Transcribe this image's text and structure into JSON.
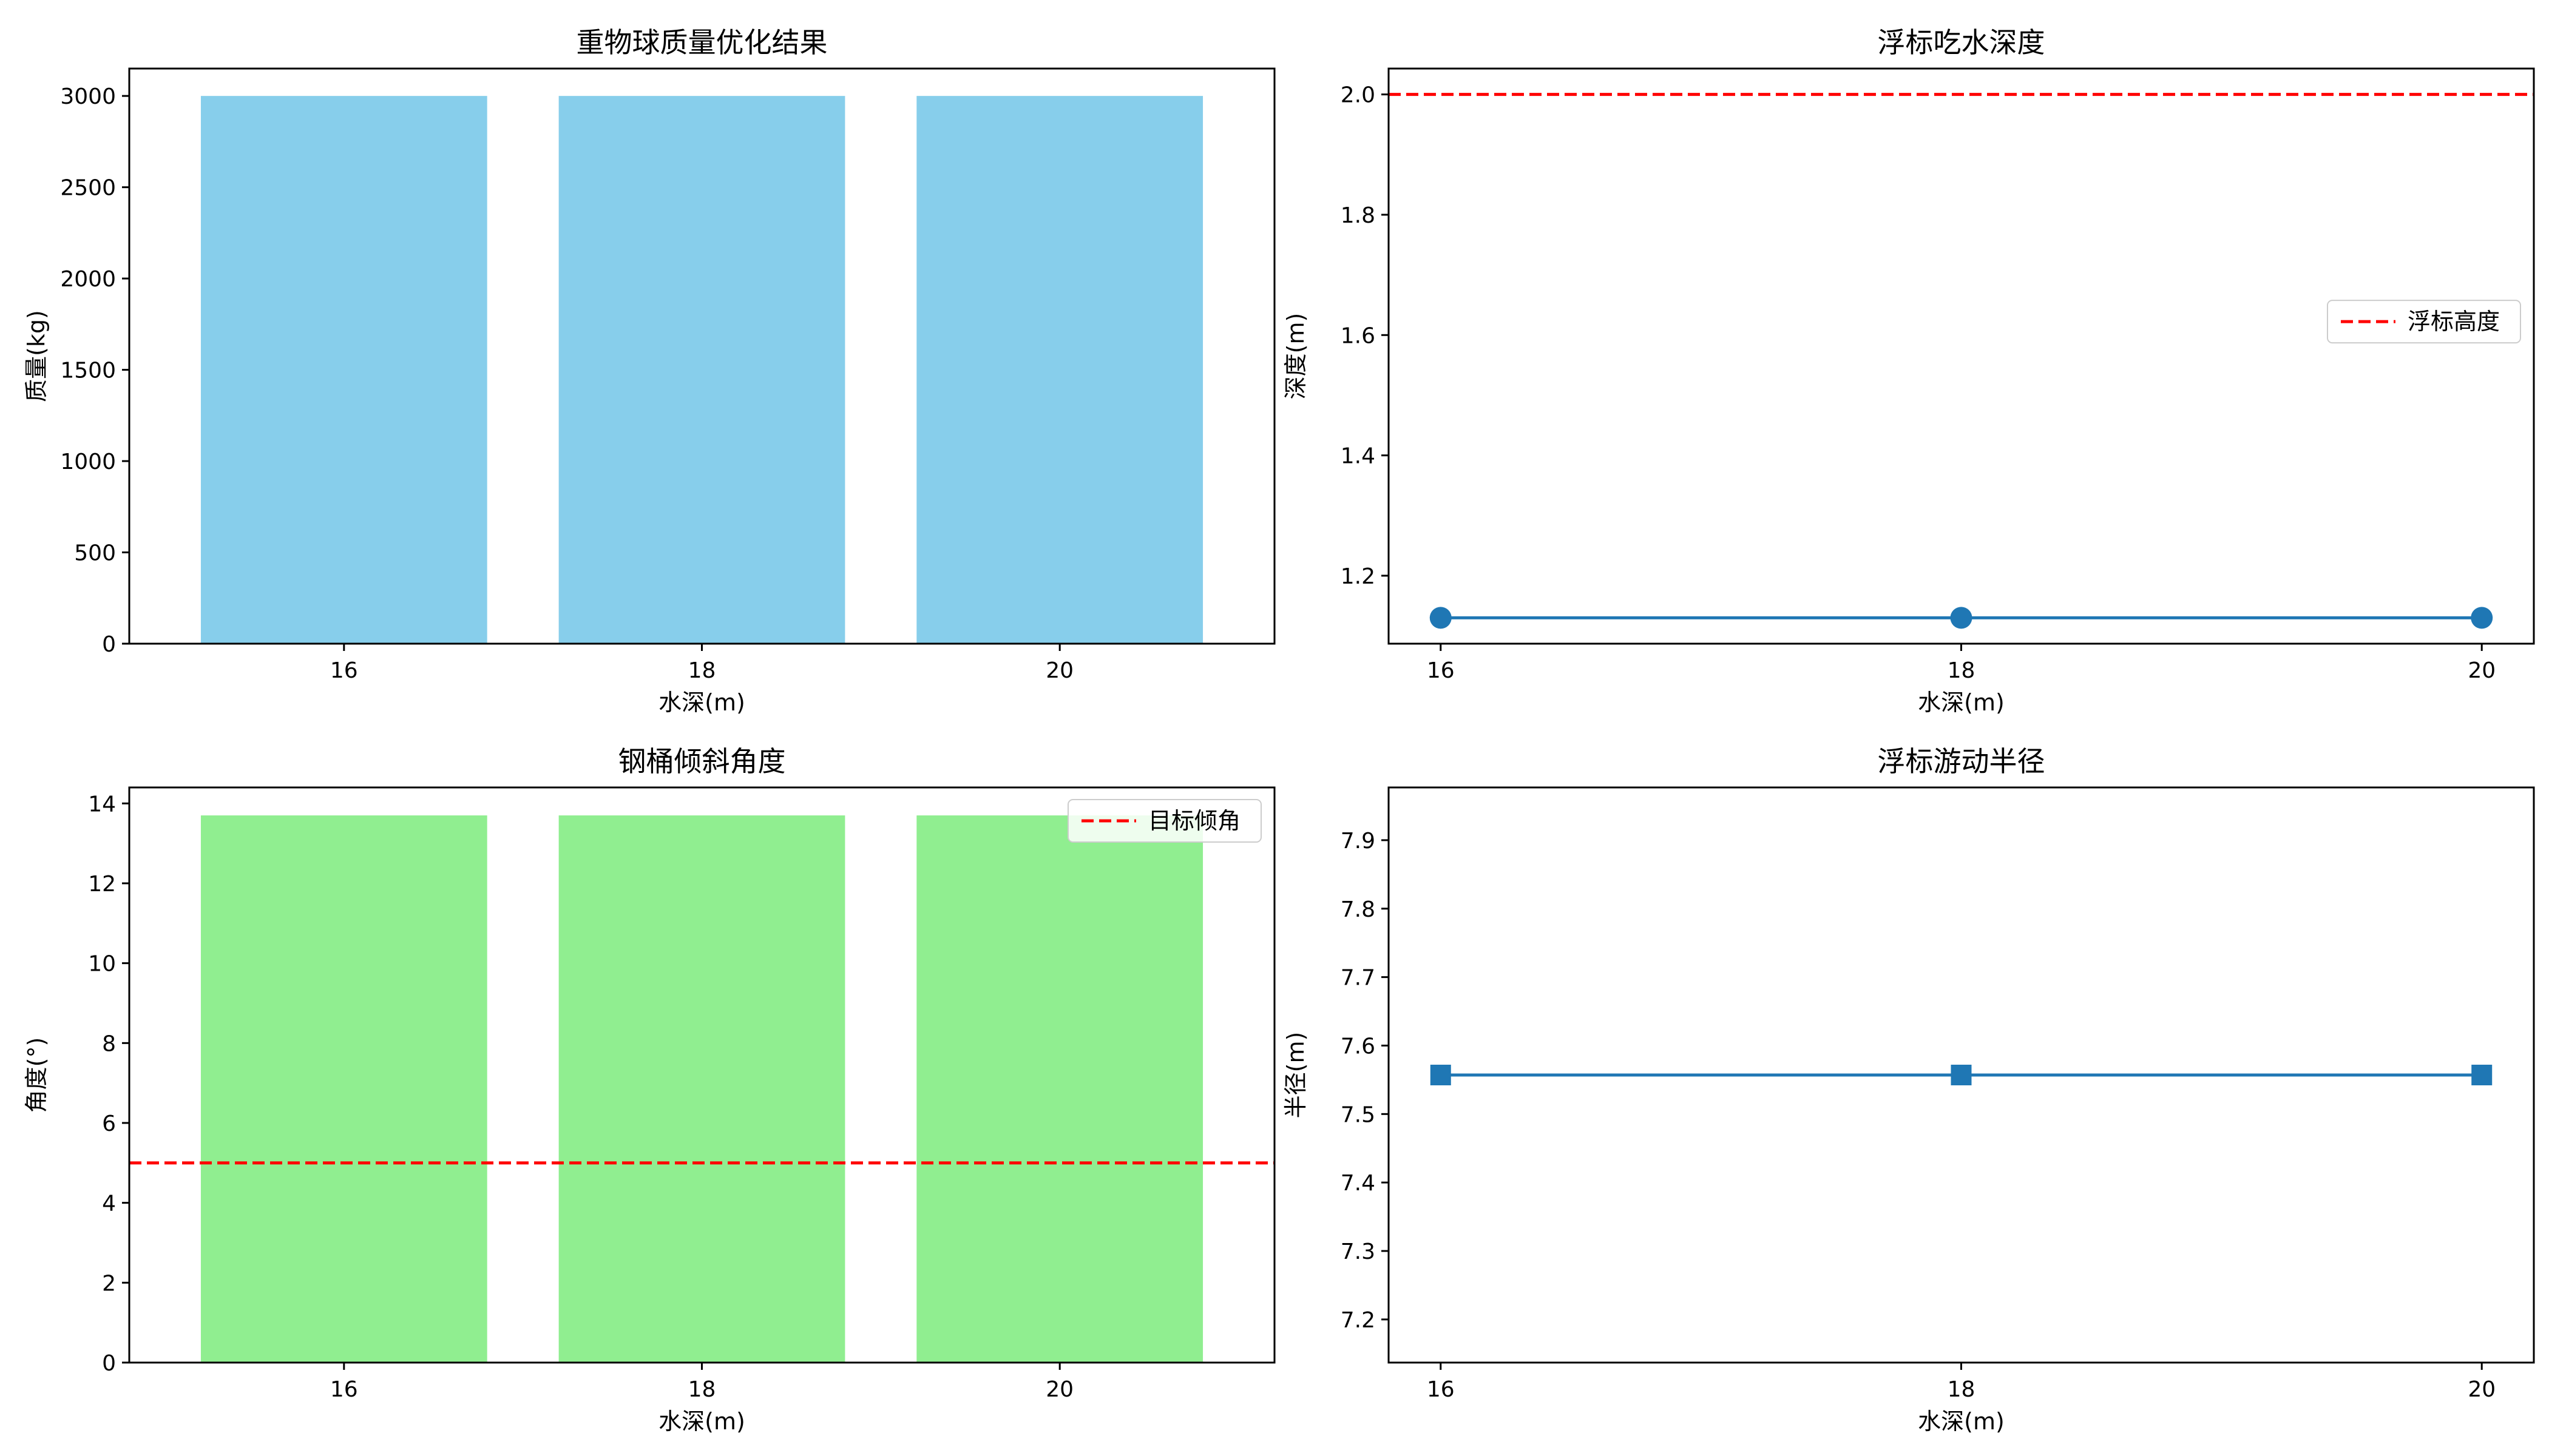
{
  "chart_data": [
    {
      "type": "bar",
      "title": "重物球质量优化结果",
      "xlabel": "水深(m)",
      "ylabel": "质量(kg)",
      "categories": [
        "16",
        "18",
        "20"
      ],
      "values": [
        3000,
        3000,
        3000
      ],
      "bar_color": "#87ceeb",
      "ylim": [
        0,
        3150
      ],
      "yticks": [
        0,
        500,
        1000,
        1500,
        2000,
        2500,
        3000
      ],
      "grid": false
    },
    {
      "type": "line",
      "title": "浮标吃水深度",
      "xlabel": "水深(m)",
      "ylabel": "深度(m)",
      "x": [
        16,
        18,
        20
      ],
      "xlim": [
        15.8,
        20.2
      ],
      "xticks": [
        16,
        18,
        20
      ],
      "series": [
        {
          "values": [
            1.13,
            1.13,
            1.13
          ],
          "color": "#1f77b4",
          "marker": "circle"
        }
      ],
      "reference_lines": [
        {
          "name": "浮标高度",
          "y": 2.0,
          "color": "#ff0000",
          "style": "dashed"
        }
      ],
      "ylim": [
        1.087,
        2.043
      ],
      "yticks": [
        1.2,
        1.4,
        1.6,
        1.8,
        2.0
      ],
      "legend": "center-right",
      "grid": false
    },
    {
      "type": "bar",
      "title": "钢桶倾斜角度",
      "xlabel": "水深(m)",
      "ylabel": "角度(°)",
      "categories": [
        "16",
        "18",
        "20"
      ],
      "values": [
        13.7,
        13.7,
        13.7
      ],
      "bar_color": "#90ee90",
      "reference_lines": [
        {
          "name": "目标倾角",
          "y": 5,
          "color": "#ff0000",
          "style": "dashed"
        }
      ],
      "ylim": [
        0,
        14.4
      ],
      "yticks": [
        0,
        2,
        4,
        6,
        8,
        10,
        12,
        14
      ],
      "legend": "top-right",
      "grid": false
    },
    {
      "type": "line",
      "title": "浮标游动半径",
      "xlabel": "水深(m)",
      "ylabel": "半径(m)",
      "x": [
        16,
        18,
        20
      ],
      "xlim": [
        15.8,
        20.2
      ],
      "xticks": [
        16,
        18,
        20
      ],
      "series": [
        {
          "values": [
            7.557,
            7.557,
            7.557
          ],
          "color": "#1f77b4",
          "marker": "square"
        }
      ],
      "ylim": [
        7.137,
        7.977
      ],
      "yticks": [
        7.2,
        7.3,
        7.4,
        7.5,
        7.6,
        7.7,
        7.8,
        7.9
      ],
      "grid": false
    }
  ]
}
